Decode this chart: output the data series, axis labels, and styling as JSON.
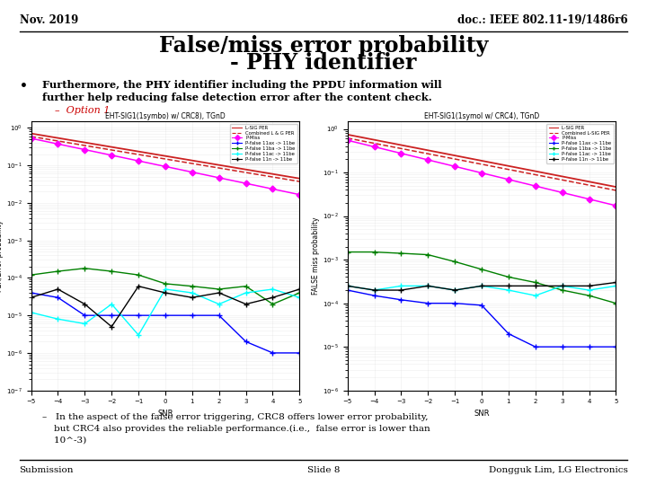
{
  "header_left": "Nov. 2019",
  "header_right": "doc.: IEEE 802.11-19/1486r6",
  "title_line1": "False/miss error probability",
  "title_line2": "- PHY identifier",
  "bullet_text_line1": "Furthermore, the PHY identifier including the PPDU information will",
  "bullet_text_line2": "further help reducing false detection error after the content check.",
  "option_label": "–  Option 1",
  "footer_left": "Submission",
  "footer_center": "Slide 8",
  "footer_right": "Dongguk Lim, LG Electronics",
  "plot1_title": "EHT-SIG1(1symbo) w/ CRC8), TGnD",
  "plot2_title": "EHT-SIG1(1symol w/ CRC4), TGnD",
  "note_line1": "–   In the aspect of the false error triggering, CRC8 offers lower error probability,",
  "note_line2": "    but CRC4 also provides the reliable performance.(i.e.,  false error is lower than",
  "note_line3": "    10^-3)",
  "background_color": "#ffffff"
}
